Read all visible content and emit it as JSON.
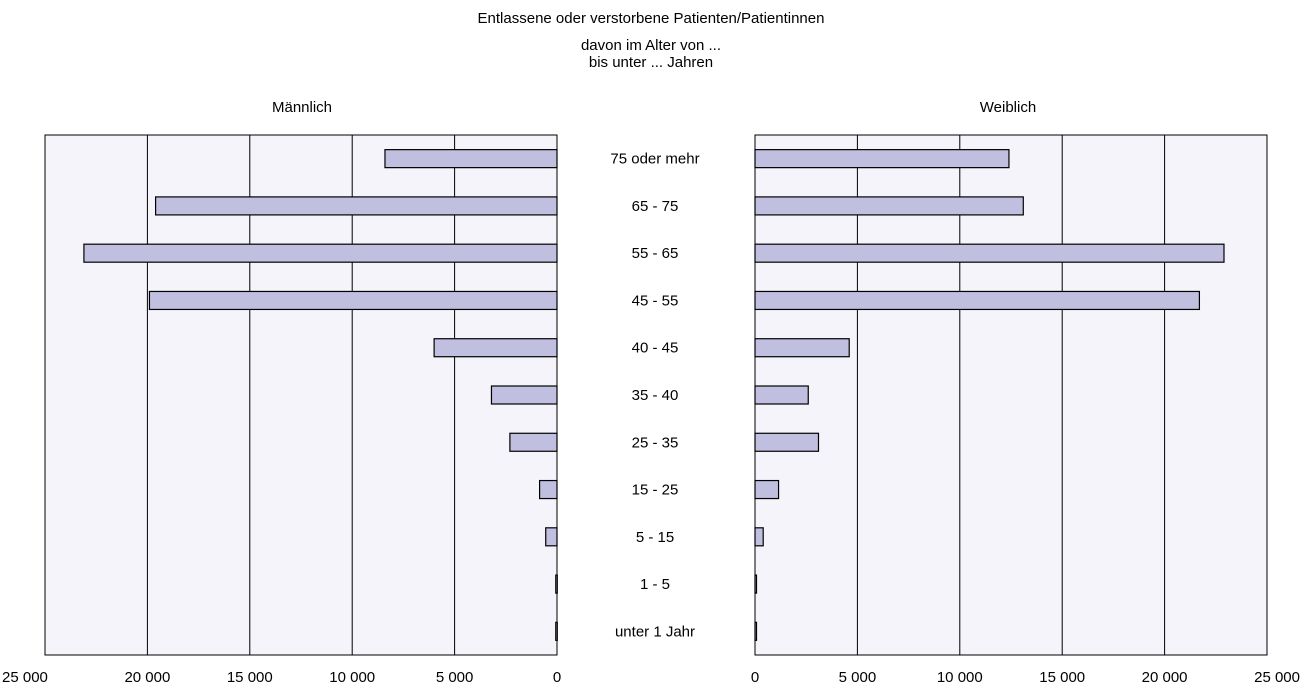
{
  "title_line1": "Entlassene oder verstorbene Patienten/Patientinnen",
  "title_line2": "davon im Alter von ...",
  "title_line3": "bis unter ... Jahren",
  "chart_data": {
    "type": "bar",
    "orientation": "horizontal-population-pyramid",
    "categories": [
      "75 oder mehr",
      "65 - 75",
      "55 - 65",
      "45 - 55",
      "40 - 45",
      "35 - 40",
      "25 - 35",
      "15 - 25",
      "5 - 15",
      "1 - 5",
      "unter 1 Jahr"
    ],
    "series": [
      {
        "name": "Männlich",
        "values": [
          8400,
          19600,
          23100,
          19900,
          6000,
          3200,
          2300,
          850,
          550,
          60,
          60
        ]
      },
      {
        "name": "Weiblich",
        "values": [
          12400,
          13100,
          22900,
          21700,
          4600,
          2600,
          3100,
          1150,
          400,
          60,
          60
        ]
      }
    ],
    "xlim": [
      0,
      25000
    ],
    "x_ticks": [
      0,
      5000,
      10000,
      15000,
      20000,
      25000
    ],
    "x_tick_labels": [
      "0",
      "5 000",
      "10 000",
      "15 000",
      "20 000",
      "25 000"
    ],
    "grid": true,
    "bar_color": "#c0bfe0",
    "plot_background": "#f4f4fa"
  }
}
